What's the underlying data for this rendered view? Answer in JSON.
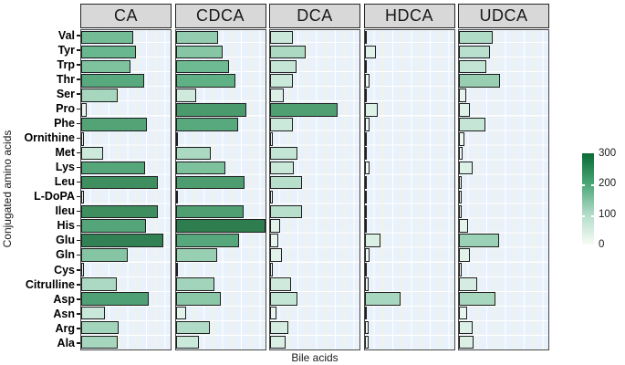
{
  "chart_data": {
    "type": "bar",
    "orientation": "horizontal",
    "title": "",
    "xlabel": "Bile acids",
    "ylabel": "Conjugated amino acids",
    "xlim": [
      0,
      330
    ],
    "grid": true,
    "facets": [
      "CA",
      "CDCA",
      "DCA",
      "HDCA",
      "UDCA"
    ],
    "categories": [
      "Val",
      "Tyr",
      "Trp",
      "Thr",
      "Ser",
      "Pro",
      "Phe",
      "Ornithine",
      "Met",
      "Lys",
      "Leu",
      "L-DoPA",
      "Ileu",
      "His",
      "Glu",
      "Gln",
      "Cys",
      "Citrulline",
      "Asp",
      "Asn",
      "Arg",
      "Ala"
    ],
    "series": [
      {
        "name": "CA",
        "values": [
          182,
          193,
          171,
          220,
          127,
          13,
          231,
          2,
          72,
          226,
          270,
          1,
          270,
          228,
          292,
          163,
          3,
          121,
          237,
          79,
          130,
          127
        ]
      },
      {
        "name": "CDCA",
        "values": [
          148,
          162,
          188,
          208,
          69,
          248,
          220,
          3,
          122,
          172,
          241,
          3,
          238,
          323,
          224,
          142,
          3,
          132,
          158,
          30,
          116,
          76
        ]
      },
      {
        "name": "DCA",
        "values": [
          76,
          122,
          89,
          76,
          43,
          238,
          76,
          3,
          92,
          79,
          109,
          3,
          109,
          30,
          23,
          36,
          3,
          69,
          92,
          17,
          59,
          50
        ]
      },
      {
        "name": "HDCA",
        "values": [
          3,
          33,
          3,
          10,
          3,
          40,
          13,
          3,
          2,
          10,
          2,
          2,
          3,
          3,
          50,
          10,
          3,
          7,
          125,
          3,
          7,
          7
        ]
      },
      {
        "name": "UDCA",
        "values": [
          116,
          106,
          92,
          142,
          20,
          33,
          88,
          13,
          5,
          43,
          3,
          3,
          3,
          26,
          139,
          33,
          3,
          59,
          125,
          23,
          43,
          46
        ]
      }
    ],
    "fill_scale": {
      "min": 0,
      "max": 300,
      "ticks": [
        300,
        200,
        100,
        0
      ],
      "legend_position": "right"
    }
  },
  "colors": {
    "panel_background": "#e9f2fb",
    "grid_major": "#fbf4cf",
    "grid_minor": "#ffffff",
    "strip_background": "#d8d8d8",
    "bar_border": "#1e1e1e",
    "fill_stops": [
      {
        "value": 0,
        "color": "#f2faf6"
      },
      {
        "value": 100,
        "color": "#bfe3d2"
      },
      {
        "value": 200,
        "color": "#63b489"
      },
      {
        "value": 300,
        "color": "#2e7d4f"
      }
    ],
    "legend_gradient": [
      "#f7fcf5",
      "#b2dcc8",
      "#4aa677",
      "#0a6b34"
    ]
  }
}
